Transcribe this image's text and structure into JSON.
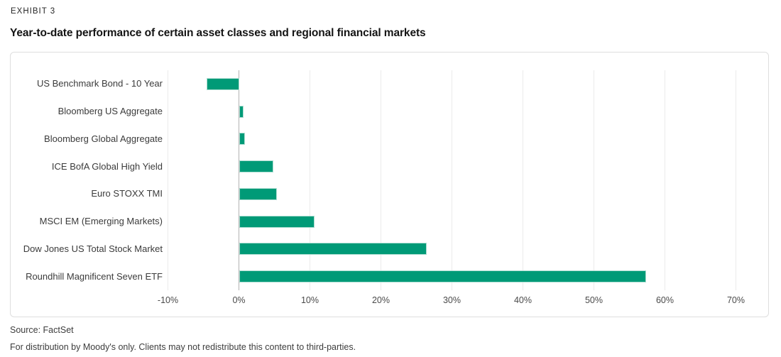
{
  "header": {
    "exhibit": "EXHIBIT 3",
    "title": "Year-to-date performance of certain asset classes and regional financial markets"
  },
  "chart_data": {
    "type": "bar",
    "orientation": "horizontal",
    "title": "Year-to-date performance of certain asset classes and regional financial markets",
    "categories": [
      "US Benchmark Bond - 10 Year",
      "Bloomberg US Aggregate",
      "Bloomberg Global Aggregate",
      "ICE BofA Global High Yield",
      "Euro STOXX TMI",
      "MSCI EM (Emerging Markets)",
      "Dow Jones US Total Stock Market",
      "Roundhill Magnificent Seven ETF"
    ],
    "values": [
      -4.6,
      0.6,
      0.8,
      4.8,
      5.3,
      10.6,
      26.4,
      57.3
    ],
    "unit": "%",
    "x_ticks": [
      -10,
      0,
      10,
      20,
      30,
      40,
      50,
      60,
      70
    ],
    "x_tick_labels": [
      "-10%",
      "0%",
      "10%",
      "20%",
      "30%",
      "40%",
      "50%",
      "60%",
      "70%"
    ],
    "xlim": [
      -10,
      70
    ],
    "grid": true,
    "legend": false,
    "bar_color": "#009A77",
    "grid_color": "#ebebeb",
    "zero_axis_color": "#b3b3b3"
  },
  "footer": {
    "source": "Source: FactSet",
    "distribution": "For distribution by Moody's only. Clients may not redistribute this content to third-parties."
  }
}
